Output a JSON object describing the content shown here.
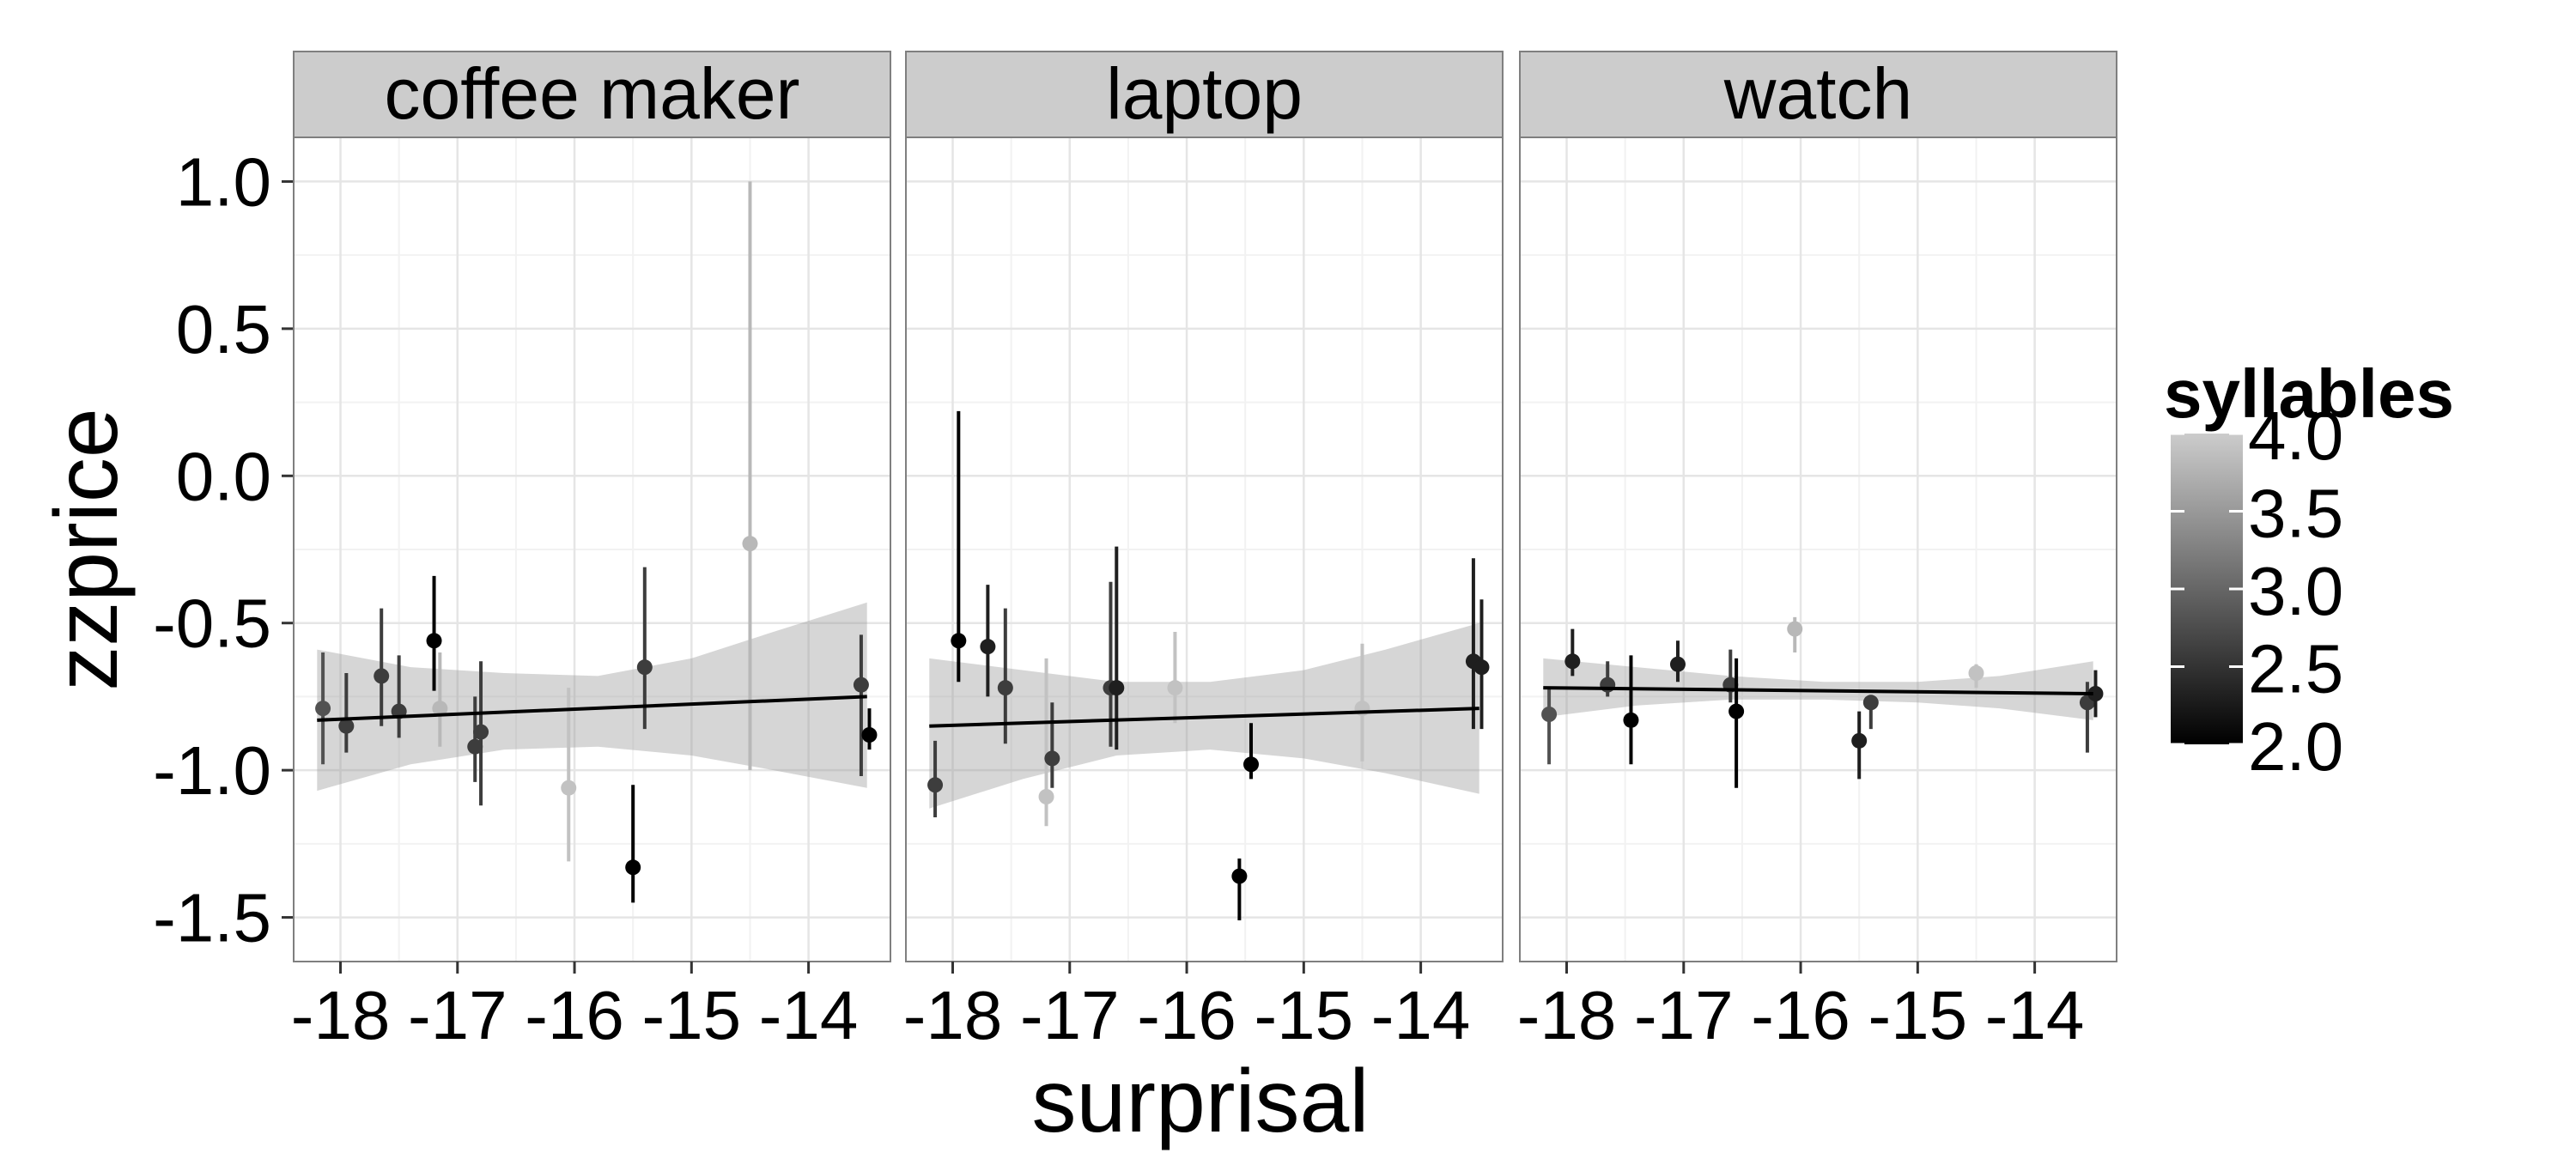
{
  "chart_data": {
    "type": "scatter",
    "xlabel": "surprisal",
    "ylabel": "zzprice",
    "xlim": [
      -18.4,
      -13.3
    ],
    "ylim": [
      -1.65,
      1.15
    ],
    "x_ticks": [
      -18,
      -17,
      -16,
      -15,
      -14
    ],
    "x_tick_labels": [
      "-18",
      "-17",
      "-16",
      "-15",
      "-14"
    ],
    "y_ticks": [
      1.0,
      0.5,
      0.0,
      -0.5,
      -1.0,
      -1.5
    ],
    "y_tick_labels": [
      "1.0",
      "0.5",
      "0.0",
      "-0.5",
      "-1.0",
      "-1.5"
    ],
    "grid": true,
    "legend": {
      "title": "syllables",
      "placement": "right",
      "type": "color-gradient",
      "range": [
        2.0,
        4.0
      ],
      "breaks": [
        2.0,
        2.5,
        3.0,
        3.5,
        4.0
      ],
      "break_labels": [
        "2.0",
        "2.5",
        "3.0",
        "3.5",
        "4.0"
      ],
      "low_color": "#000000",
      "high_color": "#cccccc"
    },
    "panels": [
      {
        "name": "coffee maker",
        "fit": {
          "x": [
            -18.2,
            -13.5
          ],
          "y": [
            -0.83,
            -0.75
          ]
        },
        "ribbon": {
          "x": [
            -18.2,
            -17.4,
            -16.6,
            -15.8,
            -15.0,
            -14.3,
            -13.5
          ],
          "lower": [
            -1.07,
            -0.98,
            -0.93,
            -0.92,
            -0.95,
            -1.0,
            -1.06
          ],
          "upper": [
            -0.59,
            -0.65,
            -0.67,
            -0.68,
            -0.62,
            -0.53,
            -0.43
          ]
        },
        "points": [
          {
            "x": -18.15,
            "y": -0.79,
            "lo": -0.98,
            "hi": -0.6,
            "syllables": 2.8
          },
          {
            "x": -17.95,
            "y": -0.85,
            "lo": -0.94,
            "hi": -0.67,
            "syllables": 2.6
          },
          {
            "x": -17.65,
            "y": -0.68,
            "lo": -0.85,
            "hi": -0.45,
            "syllables": 2.6
          },
          {
            "x": -17.5,
            "y": -0.8,
            "lo": -0.89,
            "hi": -0.61,
            "syllables": 2.6
          },
          {
            "x": -17.2,
            "y": -0.56,
            "lo": -0.73,
            "hi": -0.34,
            "syllables": 2.0
          },
          {
            "x": -17.15,
            "y": -0.79,
            "lo": -0.92,
            "hi": -0.6,
            "syllables": 3.8
          },
          {
            "x": -16.85,
            "y": -0.92,
            "lo": -1.04,
            "hi": -0.75,
            "syllables": 2.6
          },
          {
            "x": -16.8,
            "y": -0.87,
            "lo": -1.12,
            "hi": -0.63,
            "syllables": 2.6
          },
          {
            "x": -16.05,
            "y": -1.06,
            "lo": -1.31,
            "hi": -0.72,
            "syllables": 3.9
          },
          {
            "x": -15.5,
            "y": -1.33,
            "lo": -1.45,
            "hi": -1.05,
            "syllables": 2.0
          },
          {
            "x": -15.4,
            "y": -0.65,
            "lo": -0.86,
            "hi": -0.31,
            "syllables": 2.6
          },
          {
            "x": -14.5,
            "y": -0.23,
            "lo": -1.0,
            "hi": 1.0,
            "syllables": 3.8
          },
          {
            "x": -13.55,
            "y": -0.71,
            "lo": -1.02,
            "hi": -0.54,
            "syllables": 2.6
          },
          {
            "x": -13.48,
            "y": -0.88,
            "lo": -0.93,
            "hi": -0.79,
            "syllables": 2.0
          }
        ]
      },
      {
        "name": "laptop",
        "fit": {
          "x": [
            -18.2,
            -13.5
          ],
          "y": [
            -0.85,
            -0.79
          ]
        },
        "ribbon": {
          "x": [
            -18.2,
            -17.4,
            -16.6,
            -15.8,
            -15.0,
            -14.3,
            -13.5
          ],
          "lower": [
            -1.13,
            -1.03,
            -0.95,
            -0.93,
            -0.96,
            -1.01,
            -1.08
          ],
          "upper": [
            -0.62,
            -0.66,
            -0.7,
            -0.7,
            -0.66,
            -0.59,
            -0.5
          ]
        },
        "points": [
          {
            "x": -18.15,
            "y": -1.05,
            "lo": -1.16,
            "hi": -0.9,
            "syllables": 2.6
          },
          {
            "x": -17.95,
            "y": -0.56,
            "lo": -0.7,
            "hi": 0.22,
            "syllables": 2.0
          },
          {
            "x": -17.7,
            "y": -0.58,
            "lo": -0.75,
            "hi": -0.37,
            "syllables": 2.3
          },
          {
            "x": -17.55,
            "y": -0.72,
            "lo": -0.91,
            "hi": -0.45,
            "syllables": 2.6
          },
          {
            "x": -17.2,
            "y": -1.09,
            "lo": -1.19,
            "hi": -0.62,
            "syllables": 3.9
          },
          {
            "x": -17.15,
            "y": -0.96,
            "lo": -1.06,
            "hi": -0.77,
            "syllables": 2.6
          },
          {
            "x": -16.65,
            "y": -0.72,
            "lo": -0.92,
            "hi": -0.36,
            "syllables": 2.6
          },
          {
            "x": -16.6,
            "y": -0.72,
            "lo": -0.93,
            "hi": -0.24,
            "syllables": 2.3
          },
          {
            "x": -16.1,
            "y": -0.72,
            "lo": -0.84,
            "hi": -0.53,
            "syllables": 3.9
          },
          {
            "x": -15.55,
            "y": -1.36,
            "lo": -1.51,
            "hi": -1.3,
            "syllables": 2.0
          },
          {
            "x": -15.45,
            "y": -0.98,
            "lo": -1.03,
            "hi": -0.84,
            "syllables": 2.0
          },
          {
            "x": -14.5,
            "y": -0.79,
            "lo": -0.97,
            "hi": -0.57,
            "syllables": 3.9
          },
          {
            "x": -13.55,
            "y": -0.63,
            "lo": -0.86,
            "hi": -0.28,
            "syllables": 2.3
          },
          {
            "x": -13.48,
            "y": -0.65,
            "lo": -0.86,
            "hi": -0.42,
            "syllables": 2.3
          }
        ]
      },
      {
        "name": "watch",
        "fit": {
          "x": [
            -18.2,
            -13.5
          ],
          "y": [
            -0.72,
            -0.74
          ]
        },
        "ribbon": {
          "x": [
            -18.2,
            -17.4,
            -16.6,
            -15.8,
            -15.0,
            -14.3,
            -13.5
          ],
          "lower": [
            -0.82,
            -0.78,
            -0.76,
            -0.76,
            -0.77,
            -0.79,
            -0.83
          ],
          "upper": [
            -0.62,
            -0.65,
            -0.68,
            -0.7,
            -0.7,
            -0.68,
            -0.63
          ]
        },
        "points": [
          {
            "x": -18.15,
            "y": -0.81,
            "lo": -0.98,
            "hi": -0.72,
            "syllables": 2.8
          },
          {
            "x": -17.95,
            "y": -0.63,
            "lo": -0.68,
            "hi": -0.52,
            "syllables": 2.3
          },
          {
            "x": -17.65,
            "y": -0.71,
            "lo": -0.75,
            "hi": -0.63,
            "syllables": 2.6
          },
          {
            "x": -17.45,
            "y": -0.83,
            "lo": -0.98,
            "hi": -0.61,
            "syllables": 2.0
          },
          {
            "x": -17.05,
            "y": -0.64,
            "lo": -0.7,
            "hi": -0.56,
            "syllables": 2.3
          },
          {
            "x": -16.6,
            "y": -0.71,
            "lo": -0.77,
            "hi": -0.59,
            "syllables": 2.6
          },
          {
            "x": -16.55,
            "y": -0.8,
            "lo": -1.06,
            "hi": -0.62,
            "syllables": 2.0
          },
          {
            "x": -16.05,
            "y": -0.52,
            "lo": -0.6,
            "hi": -0.48,
            "syllables": 3.8
          },
          {
            "x": -15.5,
            "y": -0.9,
            "lo": -1.03,
            "hi": -0.8,
            "syllables": 2.3
          },
          {
            "x": -15.4,
            "y": -0.77,
            "lo": -0.86,
            "hi": -0.75,
            "syllables": 2.6
          },
          {
            "x": -14.5,
            "y": -0.67,
            "lo": -0.72,
            "hi": -0.64,
            "syllables": 3.9
          },
          {
            "x": -13.55,
            "y": -0.77,
            "lo": -0.94,
            "hi": -0.7,
            "syllables": 2.6
          },
          {
            "x": -13.48,
            "y": -0.74,
            "lo": -0.82,
            "hi": -0.66,
            "syllables": 2.3
          }
        ]
      }
    ]
  }
}
